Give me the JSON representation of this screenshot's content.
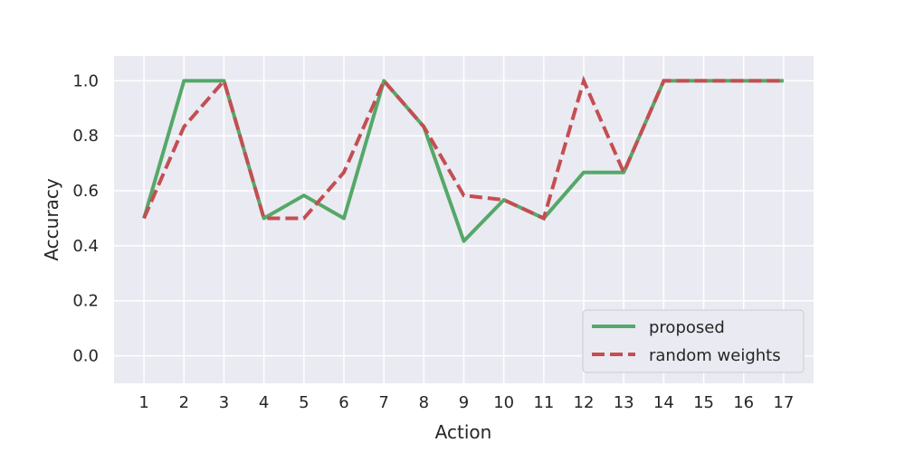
{
  "chart_data": {
    "type": "line",
    "xlabel": "Action",
    "ylabel": "Accuracy",
    "x": [
      1,
      2,
      3,
      4,
      5,
      6,
      7,
      8,
      9,
      10,
      11,
      12,
      13,
      14,
      15,
      16,
      17
    ],
    "ylim": [
      -0.1,
      1.09
    ],
    "yticks": [
      0.0,
      0.2,
      0.4,
      0.6,
      0.8,
      1.0
    ],
    "ytick_labels": [
      "0.0",
      "0.2",
      "0.4",
      "0.6",
      "0.8",
      "1.0"
    ],
    "grid": true,
    "legend_position": "bottom-right",
    "series": [
      {
        "name": "proposed",
        "color": "#55a868",
        "style": "solid",
        "values": [
          0.5,
          1.0,
          1.0,
          0.5,
          0.583,
          0.5,
          1.0,
          0.833,
          0.417,
          0.567,
          0.5,
          0.667,
          0.667,
          1.0,
          1.0,
          1.0,
          1.0
        ]
      },
      {
        "name": "random weights",
        "color": "#c44e52",
        "style": "dashed",
        "values": [
          0.5,
          0.833,
          1.0,
          0.5,
          0.5,
          0.667,
          1.0,
          0.833,
          0.583,
          0.567,
          0.5,
          1.0,
          0.667,
          1.0,
          1.0,
          1.0,
          1.0
        ]
      }
    ]
  }
}
